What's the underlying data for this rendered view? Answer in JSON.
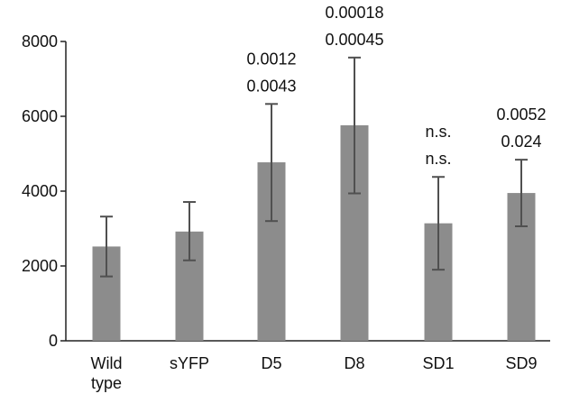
{
  "chart_data": {
    "type": "bar",
    "categories": [
      "Wild\ntype",
      "sYFP",
      "D5",
      "D8",
      "SD1",
      "SD9"
    ],
    "values": [
      2520,
      2920,
      4770,
      5760,
      3140,
      3950
    ],
    "error_low": [
      1720,
      2150,
      3200,
      3940,
      1900,
      3060
    ],
    "error_high": [
      3320,
      3710,
      6330,
      7570,
      4380,
      4840
    ],
    "annotations": [
      [],
      [],
      [
        "0.0012",
        "0.0043"
      ],
      [
        "0.00018",
        "0.00045"
      ],
      [
        "n.s.",
        "n.s."
      ],
      [
        "0.0052",
        "0.024"
      ]
    ],
    "yticks": [
      0,
      2000,
      4000,
      6000,
      8000
    ],
    "ylim": [
      0,
      8000
    ],
    "bar_color": "#8c8c8c",
    "error_color": "#505050",
    "axis_color": "#222222",
    "grid": false,
    "title": "",
    "xlabel": "",
    "ylabel": ""
  }
}
